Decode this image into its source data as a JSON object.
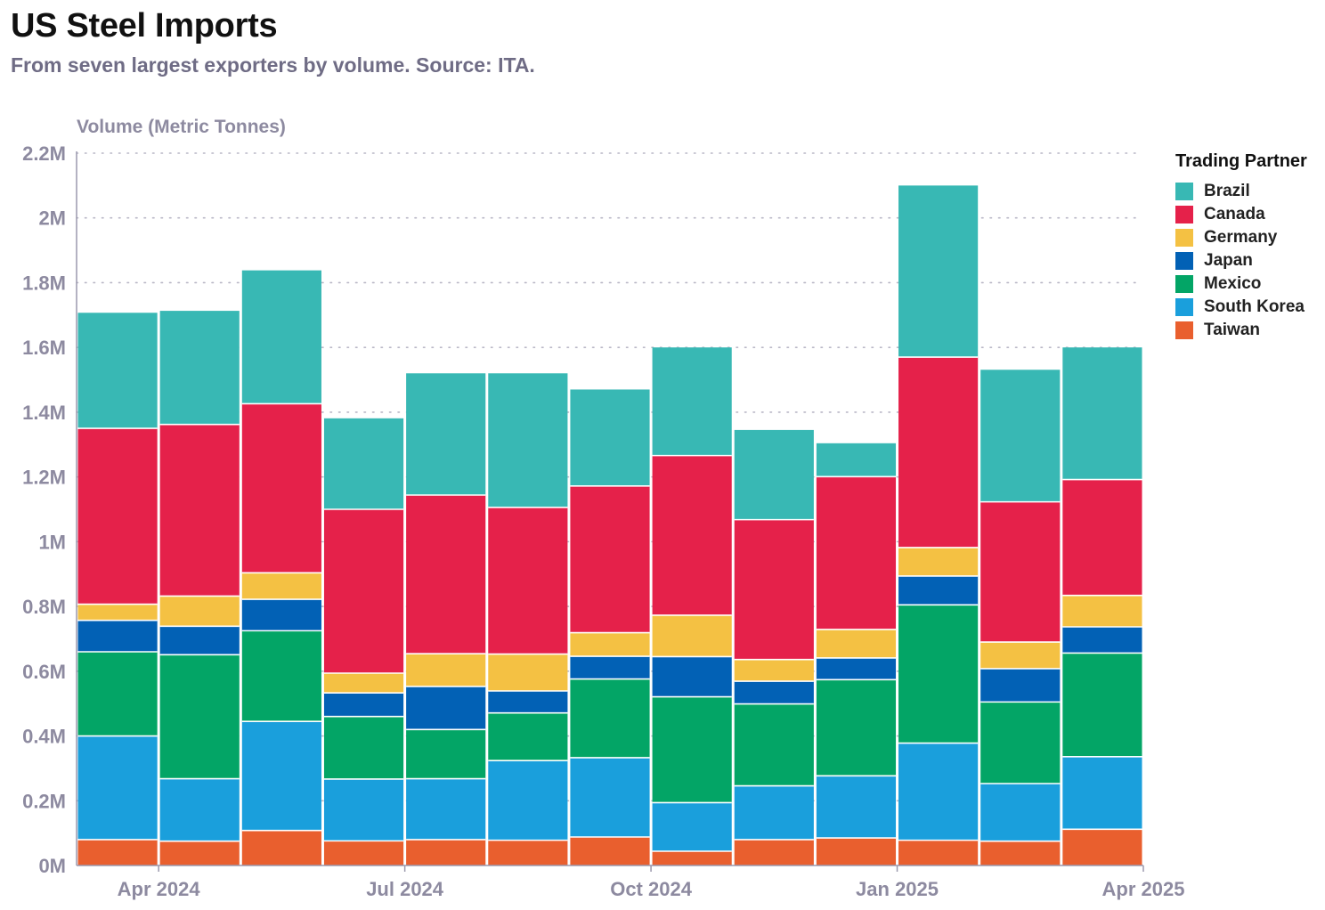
{
  "header": {
    "title": "US Steel Imports",
    "subtitle": "From seven largest exporters by volume. Source: ITA."
  },
  "chart_data": {
    "type": "bar",
    "stacked": true,
    "title": "US Steel Imports",
    "subtitle": "From seven largest exporters by volume. Source: ITA.",
    "ylabel": "Volume (Metric Tonnes)",
    "xlabel": "",
    "ylim": [
      0,
      2200000
    ],
    "yticks": [
      {
        "value": 0,
        "label": "0M"
      },
      {
        "value": 200000,
        "label": "0.2M"
      },
      {
        "value": 400000,
        "label": "0.4M"
      },
      {
        "value": 600000,
        "label": "0.6M"
      },
      {
        "value": 800000,
        "label": "0.8M"
      },
      {
        "value": 1000000,
        "label": "1M"
      },
      {
        "value": 1200000,
        "label": "1.2M"
      },
      {
        "value": 1400000,
        "label": "1.4M"
      },
      {
        "value": 1600000,
        "label": "1.6M"
      },
      {
        "value": 1800000,
        "label": "1.8M"
      },
      {
        "value": 2000000,
        "label": "2M"
      },
      {
        "value": 2200000,
        "label": "2.2M"
      }
    ],
    "categories": [
      "2024-03",
      "2024-04",
      "2024-05",
      "2024-06",
      "2024-07",
      "2024-08",
      "2024-09",
      "2024-10",
      "2024-11",
      "2024-12",
      "2025-01",
      "2025-02",
      "2025-03"
    ],
    "xticks": [
      {
        "label": "Apr 2024",
        "at": "2024-04"
      },
      {
        "label": "Jul 2024",
        "at": "2024-07"
      },
      {
        "label": "Oct 2024",
        "at": "2024-10"
      },
      {
        "label": "Jan 2025",
        "at": "2025-01"
      },
      {
        "label": "Apr 2025",
        "at": "2025-04"
      }
    ],
    "grid": "horizontal dotted",
    "legend_title": "Trading Partner",
    "legend_position": "right",
    "series": [
      {
        "name": "Taiwan",
        "color": "#e95f2e",
        "values": [
          80000,
          75000,
          108000,
          76000,
          80000,
          78000,
          88000,
          44000,
          80000,
          85000,
          78000,
          75000,
          112000
        ]
      },
      {
        "name": "South Korea",
        "color": "#1a9fdc",
        "values": [
          320000,
          193000,
          337000,
          191000,
          188000,
          246000,
          245000,
          150000,
          166000,
          192000,
          300000,
          178000,
          224000
        ]
      },
      {
        "name": "Mexico",
        "color": "#03a566",
        "values": [
          260000,
          383000,
          280000,
          193000,
          152000,
          147000,
          243000,
          327000,
          253000,
          297000,
          427000,
          252000,
          320000
        ]
      },
      {
        "name": "Japan",
        "color": "#0261b5",
        "values": [
          97000,
          88000,
          97000,
          73000,
          133000,
          68000,
          70000,
          124000,
          70000,
          67000,
          89000,
          103000,
          81000
        ]
      },
      {
        "name": "Germany",
        "color": "#f4c143",
        "values": [
          50000,
          93000,
          82000,
          61000,
          101000,
          114000,
          73000,
          128000,
          67000,
          88000,
          88000,
          82000,
          97000
        ]
      },
      {
        "name": "Canada",
        "color": "#e5214a",
        "values": [
          543000,
          530000,
          522000,
          506000,
          490000,
          453000,
          453000,
          493000,
          432000,
          472000,
          588000,
          433000,
          358000
        ]
      },
      {
        "name": "Brazil",
        "color": "#38b8b4",
        "values": [
          357000,
          351000,
          412000,
          281000,
          376000,
          414000,
          298000,
          334000,
          277000,
          103000,
          530000,
          408000,
          408000
        ]
      }
    ],
    "legend_order": [
      "Brazil",
      "Canada",
      "Germany",
      "Japan",
      "Mexico",
      "South Korea",
      "Taiwan"
    ]
  }
}
